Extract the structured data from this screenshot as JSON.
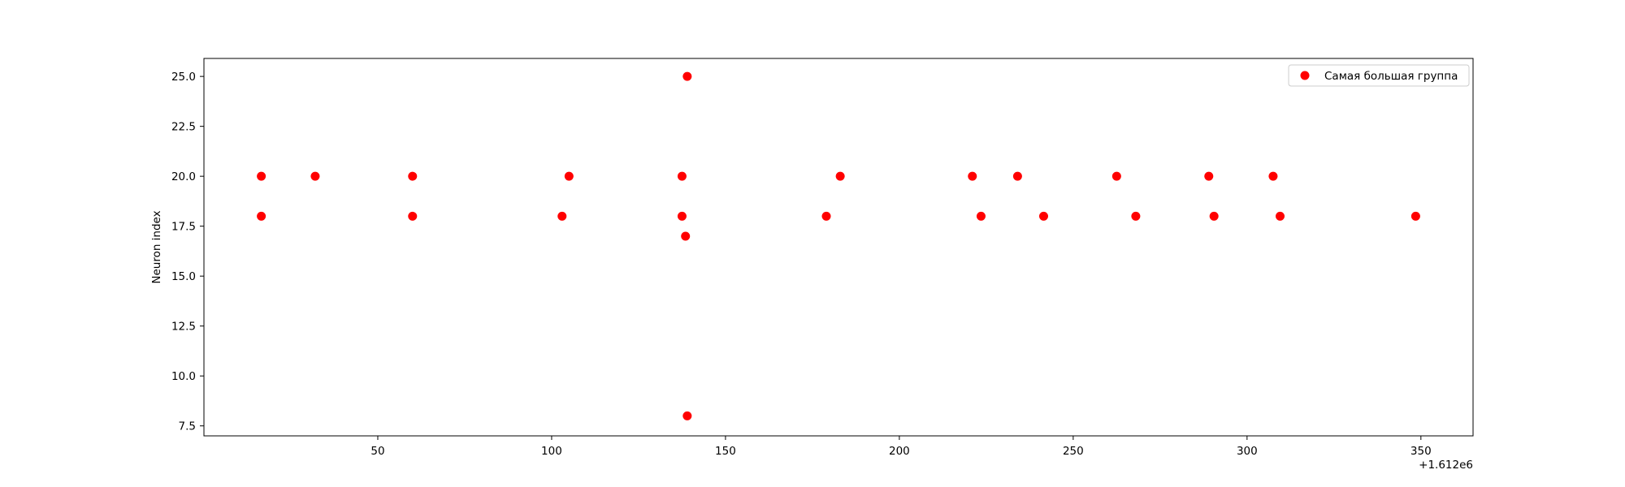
{
  "chart_data": {
    "type": "scatter",
    "title": "",
    "xlabel": "",
    "ylabel": "Neuron index",
    "x_offset_label": "+1.612e6",
    "xlim": [
      0,
      365
    ],
    "ylim": [
      7.0,
      25.9
    ],
    "xticks": [
      50,
      100,
      150,
      200,
      250,
      300,
      350
    ],
    "yticks": [
      7.5,
      10.0,
      12.5,
      15.0,
      17.5,
      20.0,
      22.5,
      25.0
    ],
    "xtick_labels": [
      "50",
      "100",
      "150",
      "200",
      "250",
      "300",
      "350"
    ],
    "ytick_labels": [
      "7.5",
      "10.0",
      "12.5",
      "15.0",
      "17.5",
      "20.0",
      "22.5",
      "25.0"
    ],
    "grid": false,
    "legend_position": "top-right",
    "series": [
      {
        "name": "Самая большая группа",
        "color": "#ff0000",
        "marker": "circle",
        "points": [
          {
            "x": 16.5,
            "y": 20
          },
          {
            "x": 16.5,
            "y": 18
          },
          {
            "x": 32,
            "y": 20
          },
          {
            "x": 60,
            "y": 20
          },
          {
            "x": 60,
            "y": 18
          },
          {
            "x": 103,
            "y": 18
          },
          {
            "x": 105,
            "y": 20
          },
          {
            "x": 137.5,
            "y": 20
          },
          {
            "x": 137.5,
            "y": 18
          },
          {
            "x": 138.5,
            "y": 17
          },
          {
            "x": 139,
            "y": 25
          },
          {
            "x": 139,
            "y": 8
          },
          {
            "x": 179,
            "y": 18
          },
          {
            "x": 183,
            "y": 20
          },
          {
            "x": 221,
            "y": 20
          },
          {
            "x": 223.5,
            "y": 18
          },
          {
            "x": 234,
            "y": 20
          },
          {
            "x": 241.5,
            "y": 18
          },
          {
            "x": 262.5,
            "y": 20
          },
          {
            "x": 268,
            "y": 18
          },
          {
            "x": 289,
            "y": 20
          },
          {
            "x": 290.5,
            "y": 18
          },
          {
            "x": 307.5,
            "y": 20
          },
          {
            "x": 309.5,
            "y": 18
          },
          {
            "x": 348.5,
            "y": 18
          }
        ]
      }
    ]
  }
}
